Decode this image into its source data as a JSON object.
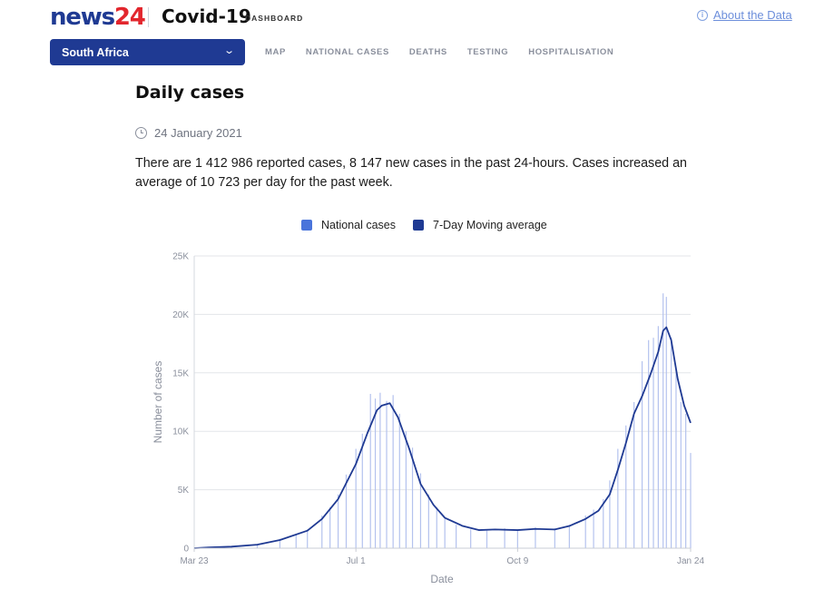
{
  "header": {
    "logo_part1": "news",
    "logo_part2": "24",
    "title": "Covid-19",
    "subtitle": "DASHBOARD",
    "about_label": "About the Data",
    "info_icon": "i"
  },
  "country_select": {
    "value": "South Africa"
  },
  "nav": {
    "tabs": [
      "MAP",
      "NATIONAL CASES",
      "DEATHS",
      "TESTING",
      "HOSPITALISATION"
    ]
  },
  "main": {
    "heading": "Daily cases",
    "date": "24 January 2021",
    "summary": "There are 1 412 986 reported cases, 8 147 new cases in the past 24-hours. Cases increased an average of 10 723 per day for the past week."
  },
  "colors": {
    "brand_blue": "#1f3a93",
    "brand_red": "#e2262d",
    "bar": "#b4c2ee",
    "legend_bar": "#4a74db",
    "line": "#1f3a93",
    "link": "#6d8fdb"
  },
  "chart_data": {
    "type": "bar",
    "x_start": "2020-03-23",
    "x_end": "2021-01-24",
    "xlabel": "Date",
    "ylabel": "Number of cases",
    "ylim": [
      0,
      25000
    ],
    "grid": true,
    "legend_position": "top",
    "yticks": [
      0,
      5000,
      10000,
      15000,
      20000,
      25000
    ],
    "ytick_labels": [
      "0",
      "5K",
      "10K",
      "15K",
      "20K",
      "25K"
    ],
    "xticks": [
      "2020-03-23",
      "2020-07-01",
      "2020-10-09",
      "2021-01-24"
    ],
    "xtick_labels": [
      "Mar 23",
      "Jul 1",
      "Oct 9",
      "Jan 24"
    ],
    "series": [
      {
        "name": "National cases",
        "kind": "bar",
        "points": [
          [
            "2020-03-23",
            0
          ],
          [
            "2020-04-01",
            80
          ],
          [
            "2020-04-15",
            120
          ],
          [
            "2020-05-01",
            350
          ],
          [
            "2020-05-15",
            800
          ],
          [
            "2020-05-25",
            1200
          ],
          [
            "2020-06-01",
            1600
          ],
          [
            "2020-06-10",
            2800
          ],
          [
            "2020-06-15",
            3500
          ],
          [
            "2020-06-20",
            4600
          ],
          [
            "2020-06-25",
            6300
          ],
          [
            "2020-07-01",
            8500
          ],
          [
            "2020-07-05",
            9800
          ],
          [
            "2020-07-10",
            13200
          ],
          [
            "2020-07-13",
            12800
          ],
          [
            "2020-07-16",
            13300
          ],
          [
            "2020-07-20",
            12600
          ],
          [
            "2020-07-24",
            13100
          ],
          [
            "2020-07-28",
            11500
          ],
          [
            "2020-08-01",
            10000
          ],
          [
            "2020-08-05",
            8600
          ],
          [
            "2020-08-10",
            6400
          ],
          [
            "2020-08-15",
            4600
          ],
          [
            "2020-08-20",
            3500
          ],
          [
            "2020-08-25",
            2500
          ],
          [
            "2020-09-01",
            2000
          ],
          [
            "2020-09-10",
            1600
          ],
          [
            "2020-09-20",
            1500
          ],
          [
            "2020-10-01",
            1700
          ],
          [
            "2020-10-09",
            1600
          ],
          [
            "2020-10-20",
            1800
          ],
          [
            "2020-11-01",
            1700
          ],
          [
            "2020-11-10",
            2000
          ],
          [
            "2020-11-20",
            2800
          ],
          [
            "2020-11-25",
            3300
          ],
          [
            "2020-12-01",
            4200
          ],
          [
            "2020-12-05",
            5800
          ],
          [
            "2020-12-10",
            8500
          ],
          [
            "2020-12-15",
            10500
          ],
          [
            "2020-12-20",
            12500
          ],
          [
            "2020-12-25",
            16000
          ],
          [
            "2020-12-29",
            17800
          ],
          [
            "2021-01-01",
            18000
          ],
          [
            "2021-01-04",
            19000
          ],
          [
            "2021-01-07",
            21800
          ],
          [
            "2021-01-09",
            21500
          ],
          [
            "2021-01-12",
            18000
          ],
          [
            "2021-01-15",
            15500
          ],
          [
            "2021-01-18",
            12500
          ],
          [
            "2021-01-21",
            11500
          ],
          [
            "2021-01-24",
            8147
          ]
        ]
      },
      {
        "name": "7-Day Moving average",
        "kind": "line",
        "points": [
          [
            "2020-03-23",
            0
          ],
          [
            "2020-04-01",
            70
          ],
          [
            "2020-04-15",
            130
          ],
          [
            "2020-05-01",
            300
          ],
          [
            "2020-05-15",
            700
          ],
          [
            "2020-06-01",
            1500
          ],
          [
            "2020-06-10",
            2500
          ],
          [
            "2020-06-20",
            4200
          ],
          [
            "2020-07-01",
            7200
          ],
          [
            "2020-07-08",
            9800
          ],
          [
            "2020-07-14",
            11800
          ],
          [
            "2020-07-17",
            12200
          ],
          [
            "2020-07-22",
            12400
          ],
          [
            "2020-07-27",
            11200
          ],
          [
            "2020-08-03",
            8500
          ],
          [
            "2020-08-10",
            5500
          ],
          [
            "2020-08-18",
            3700
          ],
          [
            "2020-08-25",
            2600
          ],
          [
            "2020-09-05",
            1900
          ],
          [
            "2020-09-15",
            1550
          ],
          [
            "2020-09-25",
            1600
          ],
          [
            "2020-10-09",
            1550
          ],
          [
            "2020-10-20",
            1650
          ],
          [
            "2020-11-01",
            1600
          ],
          [
            "2020-11-10",
            1900
          ],
          [
            "2020-11-20",
            2500
          ],
          [
            "2020-11-28",
            3200
          ],
          [
            "2020-12-05",
            4600
          ],
          [
            "2020-12-10",
            6700
          ],
          [
            "2020-12-15",
            9000
          ],
          [
            "2020-12-20",
            11500
          ],
          [
            "2020-12-25",
            13000
          ],
          [
            "2020-12-30",
            14800
          ],
          [
            "2021-01-04",
            16800
          ],
          [
            "2021-01-07",
            18600
          ],
          [
            "2021-01-09",
            18900
          ],
          [
            "2021-01-12",
            17800
          ],
          [
            "2021-01-16",
            14500
          ],
          [
            "2021-01-20",
            12200
          ],
          [
            "2021-01-24",
            10723
          ]
        ]
      }
    ]
  }
}
